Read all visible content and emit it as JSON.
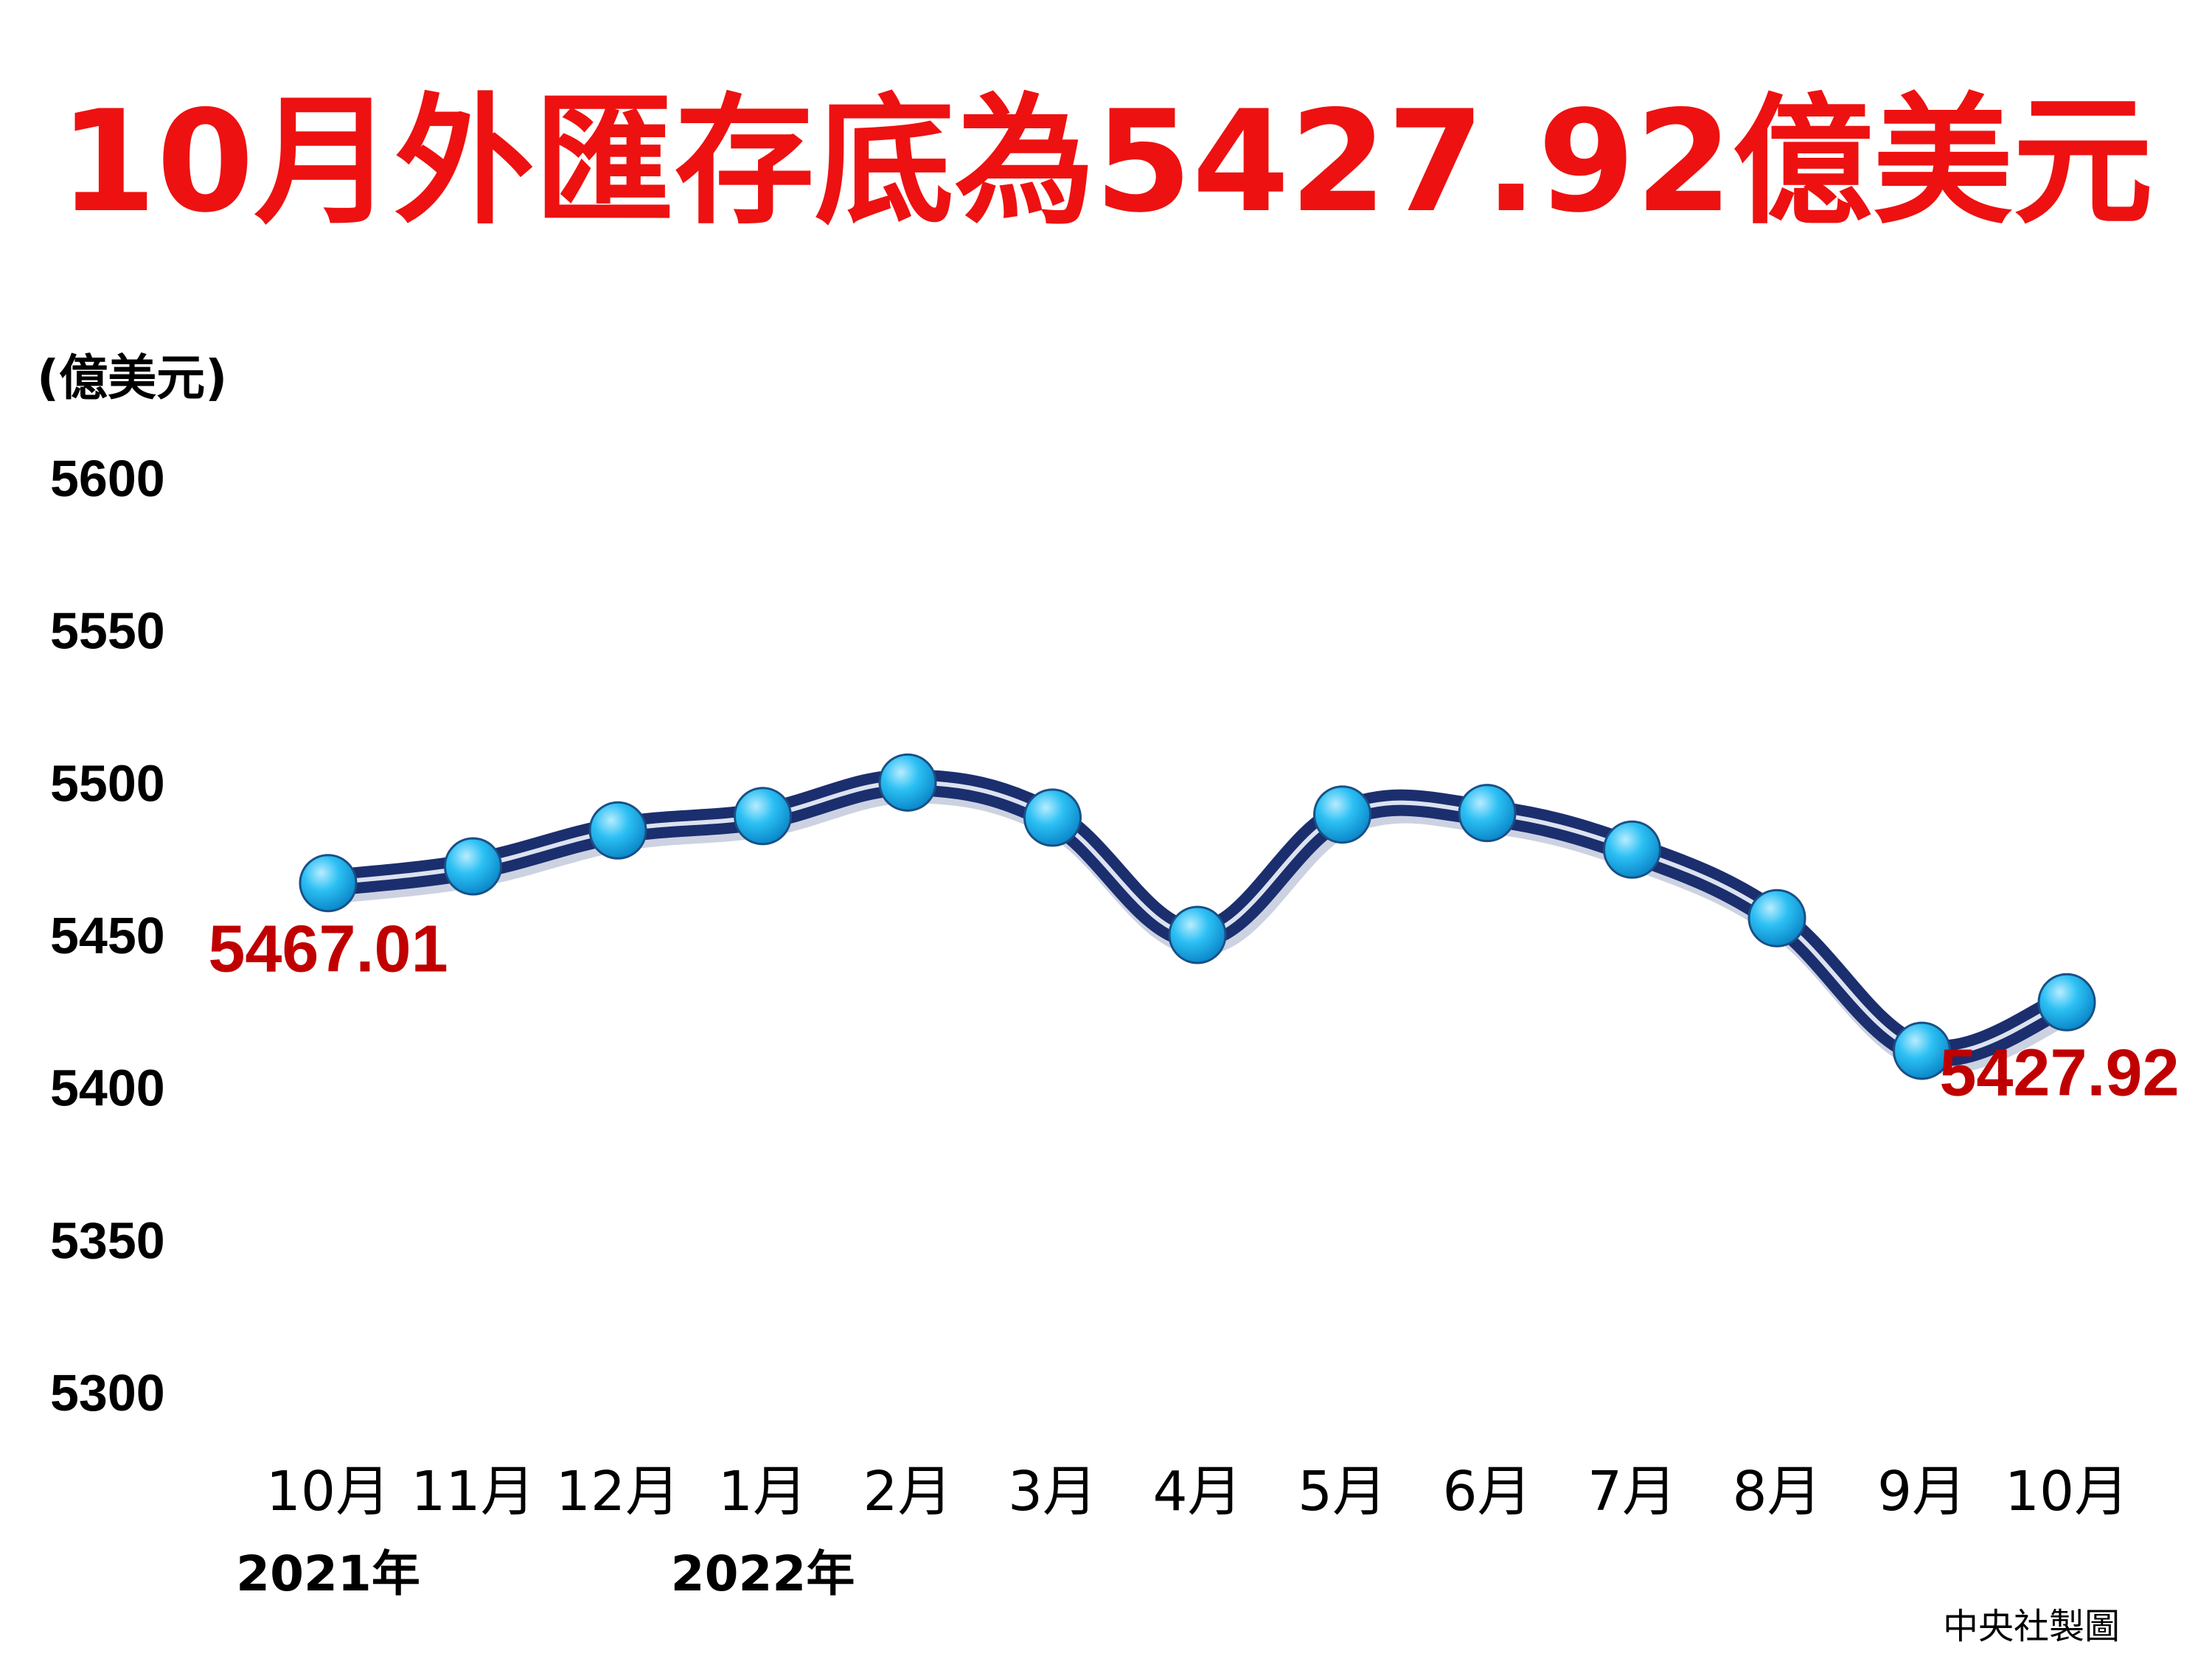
{
  "chart_data": {
    "type": "line",
    "title": "10月外匯存底為5427.92億美元",
    "ylabel": "(億美元)",
    "xlabel": "",
    "ylim": [
      5300,
      5600
    ],
    "yticks": [
      5300,
      5350,
      5400,
      5450,
      5500,
      5550,
      5600
    ],
    "categories": [
      "10月",
      "11月",
      "12月",
      "1月",
      "2月",
      "3月",
      "4月",
      "5月",
      "6月",
      "7月",
      "8月",
      "9月",
      "10月"
    ],
    "year_labels": [
      {
        "label": "2021年",
        "category_index": 0
      },
      {
        "label": "2022年",
        "category_index": 3
      }
    ],
    "series": [
      {
        "values": [
          5467.01,
          5472.5,
          5484.3,
          5489.0,
          5500.0,
          5488.5,
          5450.0,
          5489.5,
          5490.0,
          5478.0,
          5455.5,
          5412.0,
          5427.92
        ]
      }
    ],
    "annotations": [
      {
        "text": "5467.01",
        "point_index": 0
      },
      {
        "text": "5427.92",
        "point_index": 12
      }
    ],
    "grid": false,
    "legend": "none",
    "line_color": "#1b2e6e",
    "marker_color": "#22b4ee"
  },
  "source": "中央社製圖"
}
